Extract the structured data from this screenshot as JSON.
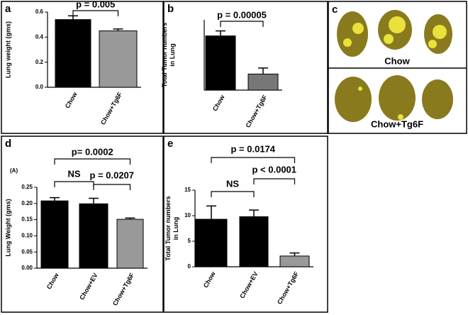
{
  "chart_data": [
    {
      "type": "bar",
      "panel": "a",
      "ylabel": [
        "Lung weight (gms)"
      ],
      "categories": [
        "Chow",
        "Chow+Tg6F"
      ],
      "values": [
        0.54,
        0.45
      ],
      "errors": [
        0.03,
        0.015
      ],
      "colors": [
        "#000000",
        "#999999"
      ],
      "ylim": [
        0,
        0.6
      ],
      "yticks": [
        {
          "value": 0,
          "label": "0.0"
        },
        0.2,
        0.4,
        0.6
      ],
      "annotations": [
        "p = 0.005"
      ]
    },
    {
      "type": "bar",
      "panel": "b",
      "ylabel": [
        "Total Tumor numbers",
        "in Lung"
      ],
      "categories": [
        "Chow",
        "Chow+Tg6F"
      ],
      "values": [
        10.8,
        3.2
      ],
      "errors": [
        1.0,
        1.2
      ],
      "colors": [
        "#000000",
        "#777777"
      ],
      "ylim": [
        0,
        14
      ],
      "yticks": [],
      "annotations": [
        "p = 0.00005"
      ]
    },
    {
      "type": "bar",
      "panel": "d",
      "subtitle": "(A)",
      "ylabel": [
        "Lung Weight (gms)"
      ],
      "categories": [
        "Chow",
        "Chow+EV",
        "Chow+Tg6F"
      ],
      "values": [
        0.208,
        0.199,
        0.151
      ],
      "errors": [
        0.01,
        0.017,
        0.004
      ],
      "colors": [
        "#000000",
        "#000000",
        "#999999"
      ],
      "ylim": [
        0,
        0.25
      ],
      "yticks": [
        {
          "value": 0,
          "label": "0.00"
        },
        {
          "value": 0.05,
          "label": "0.05"
        },
        {
          "value": 0.1,
          "label": "0.10"
        },
        {
          "value": 0.15,
          "label": "0.15"
        },
        {
          "value": 0.2,
          "label": "0.20"
        },
        {
          "value": 0.25,
          "label": "0.25"
        }
      ],
      "annotations": [
        "p= 0.0002",
        "NS",
        "p = 0.0207"
      ]
    },
    {
      "type": "bar",
      "panel": "e",
      "ylabel": [
        "Total Tumor numbers",
        "in Lung"
      ],
      "categories": [
        "Chow",
        "Chow+EV",
        "Chow+Tg6F"
      ],
      "values": [
        9.3,
        9.8,
        2.1
      ],
      "errors": [
        2.6,
        1.3,
        0.6
      ],
      "colors": [
        "#000000",
        "#000000",
        "#999999"
      ],
      "ylim": [
        0,
        15
      ],
      "yticks": [
        0,
        5,
        10,
        15
      ],
      "annotations": [
        "p = 0.0174",
        "p < 0.0001",
        "NS"
      ]
    }
  ],
  "photo_panel": {
    "panel": "c",
    "groups": [
      "Chow",
      "Chow+Tg6F"
    ]
  }
}
